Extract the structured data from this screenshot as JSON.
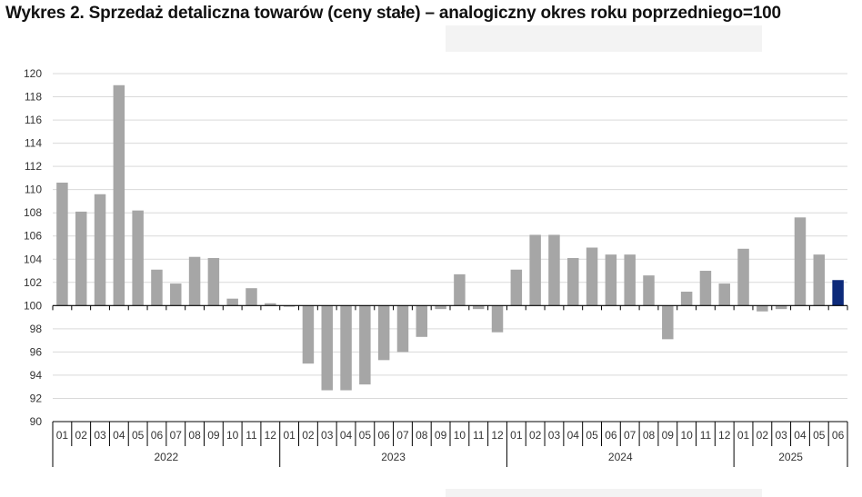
{
  "title": "Wykres 2. Sprzedaż detaliczna towarów (ceny stałe) – analogiczny okres roku poprzedniego=100",
  "colors": {
    "bar": "#a6a6a6",
    "highlight": "#0d2a7a",
    "grid": "#d9d9d9",
    "axis": "#000000"
  },
  "chart_data": {
    "type": "bar",
    "title": "Wykres 2. Sprzedaż detaliczna towarów (ceny stałe) – analogiczny okres roku poprzedniego=100",
    "xlabel": "",
    "ylabel": "",
    "baseline": 100,
    "ylim": [
      90,
      120
    ],
    "yticks": [
      90,
      92,
      94,
      96,
      98,
      100,
      102,
      104,
      106,
      108,
      110,
      112,
      114,
      116,
      118,
      120
    ],
    "grid": true,
    "categories": [
      "01",
      "02",
      "03",
      "04",
      "05",
      "06",
      "07",
      "08",
      "09",
      "10",
      "11",
      "12",
      "01",
      "02",
      "03",
      "04",
      "05",
      "06",
      "07",
      "08",
      "09",
      "10",
      "11",
      "12",
      "01",
      "02",
      "03",
      "04",
      "05",
      "06",
      "07",
      "08",
      "09",
      "10",
      "11",
      "12",
      "01",
      "02",
      "03",
      "04",
      "05",
      "06"
    ],
    "years": [
      {
        "label": "2022",
        "count": 12
      },
      {
        "label": "2023",
        "count": 12
      },
      {
        "label": "2024",
        "count": 12
      },
      {
        "label": "2025",
        "count": 6
      }
    ],
    "values": [
      110.6,
      108.1,
      109.6,
      119.0,
      108.2,
      103.1,
      101.9,
      104.2,
      104.1,
      100.6,
      101.5,
      100.2,
      99.9,
      95.0,
      92.7,
      92.7,
      93.2,
      95.3,
      96.0,
      97.3,
      99.7,
      102.7,
      99.7,
      97.7,
      103.1,
      106.1,
      106.1,
      104.1,
      105.0,
      104.4,
      104.4,
      102.6,
      97.1,
      101.2,
      103.0,
      101.9,
      104.9,
      99.5,
      99.7,
      107.6,
      104.4,
      102.2
    ],
    "highlight_index": 41
  }
}
